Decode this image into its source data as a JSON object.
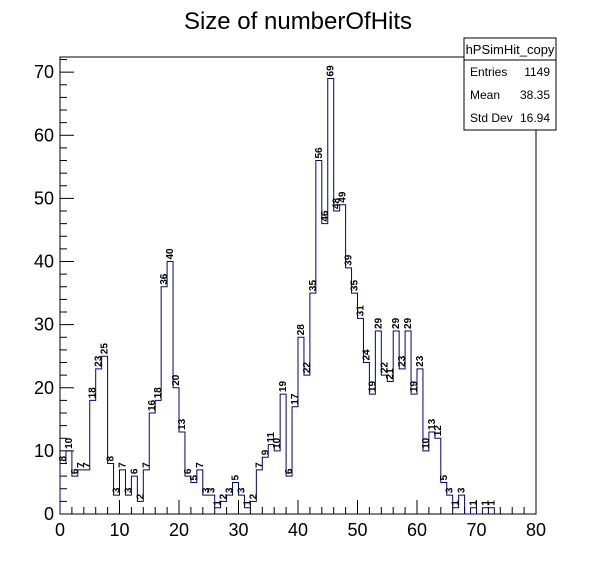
{
  "chart_data": {
    "type": "bar",
    "style": "step-histogram",
    "title": "Size of numberOfHits",
    "xlabel": "",
    "ylabel": "",
    "xlim": [
      0,
      80
    ],
    "ylim": [
      0,
      72.4
    ],
    "bin_width": 1,
    "x_ticks": [
      0,
      10,
      20,
      30,
      40,
      50,
      60,
      70,
      80
    ],
    "y_ticks": [
      0,
      10,
      20,
      30,
      40,
      50,
      60,
      70
    ],
    "line_color": "#000080",
    "values": [
      8,
      10,
      6,
      7,
      7,
      18,
      23,
      25,
      8,
      3,
      7,
      3,
      6,
      2,
      7,
      16,
      18,
      36,
      40,
      20,
      13,
      6,
      5,
      7,
      3,
      3,
      1,
      2,
      3,
      5,
      3,
      1,
      2,
      7,
      9,
      11,
      10,
      19,
      6,
      17,
      28,
      22,
      35,
      56,
      46,
      69,
      48,
      49,
      39,
      35,
      31,
      24,
      19,
      29,
      22,
      21,
      29,
      23,
      29,
      19,
      23,
      10,
      13,
      12,
      5,
      3,
      1,
      3,
      0,
      1,
      0,
      1,
      1
    ]
  },
  "stats_box": {
    "name": "hPSimHit_copy",
    "rows": [
      {
        "label": "Entries",
        "value": "1149"
      },
      {
        "label": "Mean",
        "value": "38.35"
      },
      {
        "label": "Std Dev",
        "value": "16.94"
      }
    ]
  }
}
